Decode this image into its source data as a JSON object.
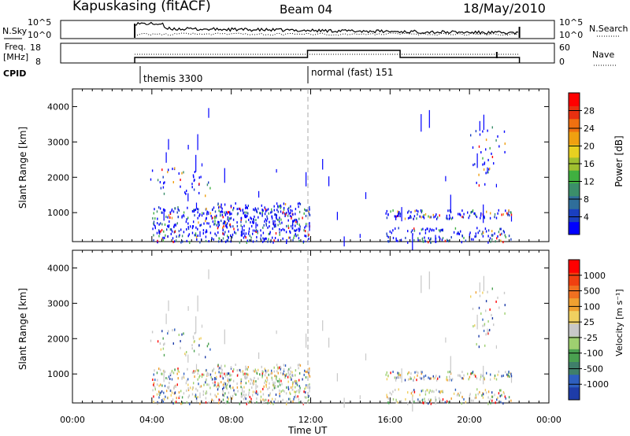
{
  "header": {
    "station": "Kapuskasing (fitACF)",
    "beam": "Beam 04",
    "date": "18/May/2010"
  },
  "nsky_panel": {
    "label": "N.Sky",
    "right_label": "N.Search",
    "left_ticks": [
      "10^5",
      "10^0"
    ],
    "right_ticks": [
      "10^5",
      "10^0"
    ]
  },
  "freq_panel": {
    "label_line1": "Freq.",
    "label_line2": "[MHz]",
    "right_label": "Nave",
    "left_ticks": [
      "18",
      "8"
    ],
    "right_ticks": [
      "60",
      "0"
    ]
  },
  "cpid": {
    "label": "CPID",
    "segments": [
      {
        "start_hour": 3.6,
        "name": "themis 3300"
      },
      {
        "start_hour": 12.0,
        "name": "normal (fast) 151"
      }
    ]
  },
  "power_colorbar": {
    "label": "Power [dB]",
    "ticks": [
      "4",
      "8",
      "12",
      "16",
      "20",
      "24",
      "28"
    ],
    "colors": [
      "#0000ff",
      "#1a3fc0",
      "#2f6e9a",
      "#3b8e6a",
      "#40b040",
      "#a0c030",
      "#e8d020",
      "#f0a010",
      "#f07010",
      "#e83010",
      "#ff0000"
    ]
  },
  "velocity_colorbar": {
    "label": "Velocity [m s⁻¹]",
    "ticks": [
      "1000",
      "500",
      "100",
      "25",
      "-25",
      "-100",
      "-500",
      "-1000"
    ],
    "colors": [
      "#1e3ca8",
      "#2e5fc0",
      "#3f7f6a",
      "#4aa050",
      "#9ed070",
      "#c8c8c8",
      "#f0d060",
      "#f0a030",
      "#f07020",
      "#f04010",
      "#ff0000"
    ]
  },
  "chart_data": [
    {
      "type": "heatmap",
      "title": "Kapuskasing (fitACF) Beam 04 18/May/2010",
      "xlabel": "Time UT",
      "ylabel": "Slant Range [km]",
      "colorbar_label": "Power [dB]",
      "x_ticks": [
        "00:00",
        "04:00",
        "08:00",
        "12:00",
        "16:00",
        "20:00",
        "00:00"
      ],
      "xlim": [
        0,
        24
      ],
      "y_ticks": [
        "1000",
        "2000",
        "3000",
        "4000"
      ],
      "ylim": [
        180,
        4500
      ],
      "data_window_hours": [
        3.6,
        22.3
      ],
      "clusters": [
        {
          "t": [
            4.0,
            12.0
          ],
          "r": [
            180,
            1200
          ],
          "density": 0.55,
          "note": "near-range scatter"
        },
        {
          "t": [
            7.0,
            11.5
          ],
          "r": [
            600,
            1300
          ],
          "density": 0.35
        },
        {
          "t": [
            15.7,
            22.1
          ],
          "r": [
            850,
            1100
          ],
          "density": 0.7,
          "note": "band near 1000 km"
        },
        {
          "t": [
            15.7,
            22.1
          ],
          "r": [
            180,
            600
          ],
          "density": 0.45
        },
        {
          "t": [
            3.6,
            7.0
          ],
          "r": [
            1500,
            2300
          ],
          "density": 0.15
        },
        {
          "t": [
            20.0,
            21.8
          ],
          "r": [
            1800,
            3500
          ],
          "density": 0.12
        }
      ]
    },
    {
      "type": "heatmap",
      "xlabel": "Time UT",
      "ylabel": "Slant Range [km]",
      "colorbar_label": "Velocity [m s⁻¹]",
      "x_ticks": [
        "00:00",
        "04:00",
        "08:00",
        "12:00",
        "16:00",
        "20:00",
        "00:00"
      ],
      "xlim": [
        0,
        24
      ],
      "y_ticks": [
        "1000",
        "2000",
        "3000",
        "4000"
      ],
      "ylim": [
        180,
        4500
      ],
      "data_window_hours": [
        3.6,
        22.3
      ]
    }
  ]
}
